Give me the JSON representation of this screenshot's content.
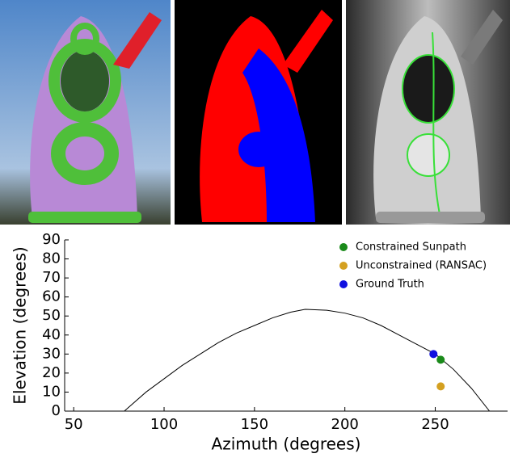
{
  "chart_data": {
    "type": "scatter",
    "xlabel": "Azimuth (degrees)",
    "ylabel": "Elevation (degrees)",
    "xlim": [
      45,
      290
    ],
    "xticks": [
      50,
      100,
      150,
      200,
      250
    ],
    "ylim": [
      0,
      90
    ],
    "yticks": [
      0,
      10,
      20,
      30,
      40,
      50,
      60,
      70,
      80,
      90
    ],
    "legend": "upper right",
    "series": [
      {
        "style": "line",
        "color": "#000000",
        "x": [
          78,
          90,
          100,
          110,
          120,
          130,
          140,
          150,
          160,
          170,
          178,
          190,
          200,
          210,
          220,
          230,
          240,
          250,
          260,
          270,
          280
        ],
        "values": [
          0,
          10,
          17,
          24,
          30,
          36,
          41,
          45,
          49,
          52,
          53.5,
          53,
          51.5,
          49,
          45,
          40,
          35,
          30,
          22,
          12,
          0
        ]
      },
      {
        "name": "Constrained Sunpath",
        "style": "point",
        "color": "#1a8a1a",
        "x": [
          253
        ],
        "values": [
          27
        ]
      },
      {
        "name": "Unconstrained (RANSAC)",
        "style": "point",
        "color": "#d4a020",
        "x": [
          253
        ],
        "values": [
          13
        ]
      },
      {
        "name": "Ground Truth",
        "style": "point",
        "color": "#1010e0",
        "x": [
          249
        ],
        "values": [
          30
        ]
      }
    ]
  }
}
